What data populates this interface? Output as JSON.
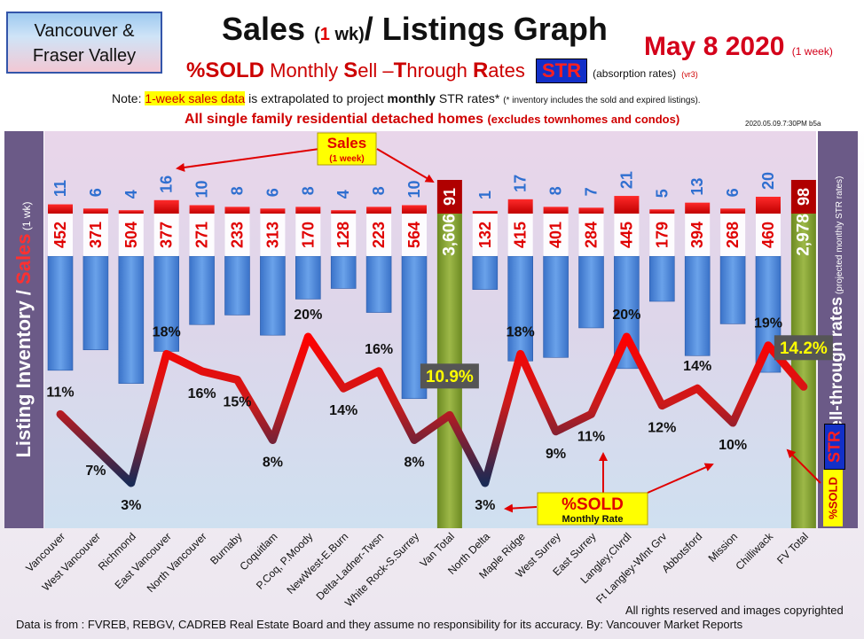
{
  "header": {
    "region_line1": "Vancouver &",
    "region_line2": "Fraser Valley",
    "title_a": "Sales ",
    "title_b": "(",
    "title_c": "1",
    "title_d": " wk)",
    "title_e": "/ Listings Graph",
    "date": "May 8  2020",
    "date_note": "(1 week)",
    "subtitle_a": "%SOLD",
    "subtitle_b": " Monthly ",
    "subtitle_c": "S",
    "subtitle_d": "ell –",
    "subtitle_e": "T",
    "subtitle_f": "hrough ",
    "subtitle_g": "R",
    "subtitle_h": "ates ",
    "str_badge": "STR",
    "subtitle_abs": "(absorption rates)",
    "subtitle_ver": "(vr3)",
    "note_a": "Note: ",
    "note_hl": "1-week sales data",
    "note_b": " is extrapolated to project ",
    "note_bold": "monthly",
    "note_c": " STR rates*",
    "note_tiny": "(* inventory includes the sold and expired listings).",
    "detached": "All single family residential detached homes",
    "detached_note": "(excludes townhomes and condos)",
    "stamp": "2020.05.09.7:30PM b5a"
  },
  "axes": {
    "left_a": "Listing Inventory / ",
    "left_b": "Sales",
    "left_c": " (1 wk)",
    "right_a": "Sell-through rates",
    "right_b": " (projected monthly STR rates)",
    "right_str": "STR",
    "right_sold": "%SOLD"
  },
  "callouts": {
    "sales_a": "Sales",
    "sales_b": "(1 week)",
    "sold_a": "%SOLD",
    "sold_b": "Monthly Rate"
  },
  "footer": {
    "source": "Data is from : FVREB, REBGV, CADREB Real Estate Board and they assume no responsibility for its accuracy. By: Vancouver Market Reports",
    "copyright": "All rights reserved and  images copyrighted"
  },
  "colors": {
    "inventory": "#4a86d8",
    "sales": "#e60000",
    "total_bar": "#7e9a2e",
    "total_sales": "#b00000",
    "line_high": "#ff0000",
    "line_low": "#1a2a55"
  },
  "chart_data": {
    "type": "bar",
    "categories": [
      "Vancouver",
      "West Vancouver",
      "Richmond",
      "East Vancouver",
      "North Vancouver",
      "Burnaby",
      "Coquitlam",
      "P.Coq, P.Moody",
      "NewWest-E.Burn",
      "Delta-Ladner-Twsn",
      "White Rock-S.Surrey",
      "Van Total",
      "North Delta",
      "Maple Ridge",
      "West Surrey",
      "East Surrey",
      "Langley,Clvrdl",
      "Ft Langley-Wlnt Grv",
      "Abbotsford",
      "Mission",
      "Chilliwack",
      "FV Total"
    ],
    "series": [
      {
        "name": "Inventory",
        "values": [
          452,
          371,
          504,
          377,
          271,
          233,
          313,
          170,
          128,
          223,
          564,
          3606,
          132,
          415,
          401,
          284,
          445,
          179,
          394,
          268,
          460,
          2978
        ]
      },
      {
        "name": "Sales",
        "values": [
          11,
          6,
          4,
          16,
          10,
          8,
          6,
          8,
          4,
          8,
          10,
          91,
          1,
          17,
          8,
          7,
          21,
          5,
          13,
          6,
          20,
          98
        ]
      },
      {
        "name": "%SOLD Monthly Rate",
        "values": [
          11,
          7,
          3,
          18,
          16,
          15,
          8,
          20,
          14,
          16,
          8,
          10.9,
          3,
          18,
          9,
          11,
          20,
          12,
          14,
          10,
          19,
          14.2
        ]
      }
    ],
    "inventory_labels": [
      "452",
      "371",
      "504",
      "377",
      "271",
      "233",
      "313",
      "170",
      "128",
      "223",
      "564",
      "3,606",
      "132",
      "415",
      "401",
      "284",
      "445",
      "179",
      "394",
      "268",
      "460",
      "2,978"
    ],
    "sales_labels": [
      "11",
      "6",
      "4",
      "16",
      "10",
      "8",
      "6",
      "8",
      "4",
      "8",
      "10",
      "91",
      "1",
      "17",
      "8",
      "7",
      "21",
      "5",
      "13",
      "6",
      "20",
      "98"
    ],
    "pct_labels": [
      "11%",
      "7%",
      "3%",
      "18%",
      "16%",
      "15%",
      "8%",
      "20%",
      "14%",
      "16%",
      "8%",
      "10.9%",
      "3%",
      "18%",
      "9%",
      "11%",
      "20%",
      "12%",
      "14%",
      "10%",
      "19%",
      "14.2%"
    ],
    "totals": [
      "Van Total",
      "FV Total"
    ],
    "title": "Sales (1 wk)/ Listings Graph",
    "ylabel": "Listing Inventory / Sales (1 wk)",
    "y2label": "Sell-through rates (projected monthly STR rates)"
  }
}
